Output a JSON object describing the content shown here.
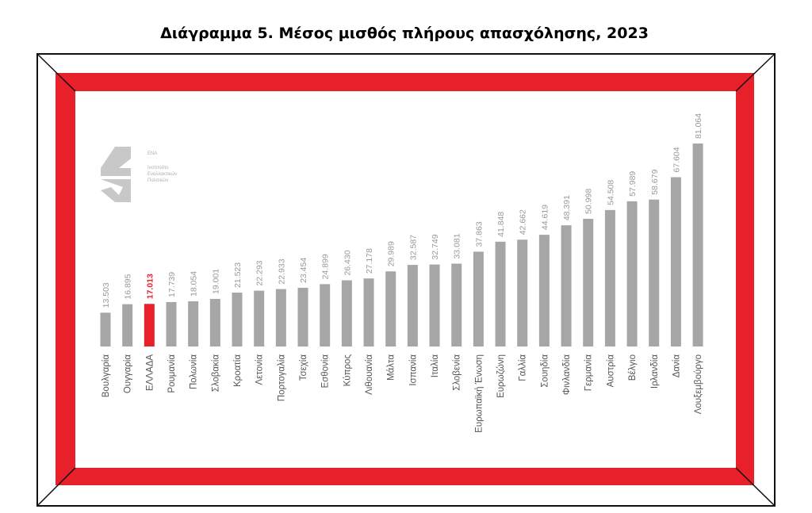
{
  "chart_data": {
    "type": "bar",
    "title": "Διάγραμμα 5. Μέσος μισθός πλήρους απασχόλησης, 2023",
    "logo": {
      "name": "ΕΝΑ",
      "lines": [
        "Ινστιτούτο",
        "Εναλλακτικών",
        "Πολιτικών"
      ]
    },
    "categories": [
      "Βουλγαρία",
      "Ουγγαρία",
      "ΕΛΛΑΔΑ",
      "Ρουμανία",
      "Πολωνία",
      "Σλοβακία",
      "Κροατία",
      "Λετονία",
      "Πορτογαλία",
      "Τσεχία",
      "Εσθονία",
      "Κύπρος",
      "Λιθουανία",
      "Μάλτα",
      "Ισπανία",
      "Ιταλία",
      "Σλοβενία",
      "Ευρωπαϊκή Ένωση",
      "Ευρωζώνη",
      "Γαλλία",
      "Σουηδία",
      "Φινλανδία",
      "Γερμανία",
      "Αυστρία",
      "Βέλγιο",
      "Ιρλανδία",
      "Δανία",
      "Λουξεμβούργο"
    ],
    "values": [
      13503,
      16895,
      17013,
      17739,
      18054,
      19001,
      21523,
      22293,
      22933,
      23454,
      24899,
      26430,
      27178,
      29989,
      32587,
      32749,
      33081,
      37863,
      41848,
      42662,
      44619,
      48391,
      50998,
      54508,
      57989,
      58679,
      67604,
      81064
    ],
    "value_labels": [
      "13.503",
      "16.895",
      "17.013",
      "17.739",
      "18.054",
      "19.001",
      "21.523",
      "22.293",
      "22.933",
      "23.454",
      "24.899",
      "26.430",
      "27.178",
      "29.989",
      "32.587",
      "32.749",
      "33.081",
      "37.863",
      "41.848",
      "42.662",
      "44.619",
      "48.391",
      "50.998",
      "54.508",
      "57.989",
      "58.679",
      "67.604",
      "81.064"
    ],
    "colors": [
      "#a6a6a6",
      "#a6a6a6",
      "#e8202a",
      "#a6a6a6",
      "#a6a6a6",
      "#a6a6a6",
      "#a6a6a6",
      "#a6a6a6",
      "#a6a6a6",
      "#a6a6a6",
      "#a6a6a6",
      "#a6a6a6",
      "#a6a6a6",
      "#a6a6a6",
      "#a6a6a6",
      "#a6a6a6",
      "#a6a6a6",
      "#a6a6a6",
      "#a6a6a6",
      "#a6a6a6",
      "#a6a6a6",
      "#a6a6a6",
      "#a6a6a6",
      "#a6a6a6",
      "#a6a6a6",
      "#a6a6a6",
      "#a6a6a6",
      "#a6a6a6"
    ]
  }
}
